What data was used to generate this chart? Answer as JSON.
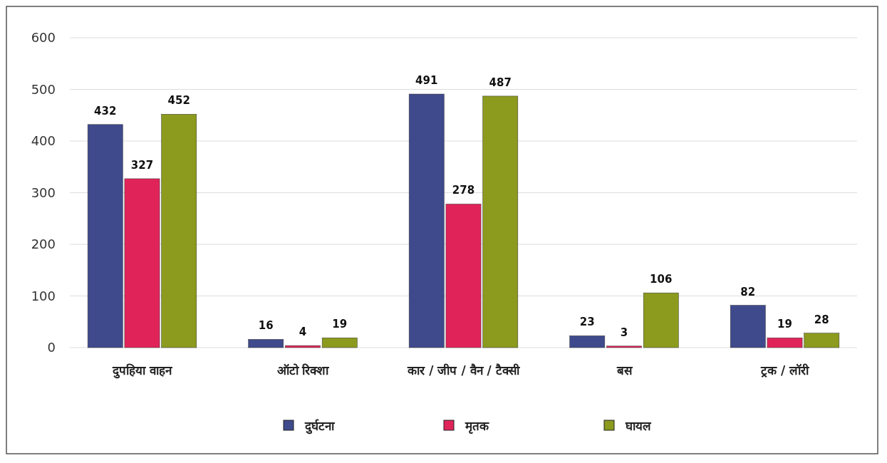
{
  "chart_data": {
    "type": "bar",
    "categories": [
      "दुपहिया वाहन",
      "ऑटो रिक्शा",
      "कार / जीप / वैन / टैक्सी",
      "बस",
      "ट्रक / लॉरी"
    ],
    "series": [
      {
        "name": "दुर्घटना",
        "color": "#3f4a8c",
        "values": [
          432,
          16,
          491,
          23,
          82
        ]
      },
      {
        "name": "मृतक",
        "color": "#e0245a",
        "values": [
          327,
          4,
          278,
          3,
          19
        ]
      },
      {
        "name": "घायल",
        "color": "#8c9a1e",
        "values": [
          452,
          19,
          487,
          106,
          28
        ]
      }
    ],
    "ylim": [
      0,
      600
    ],
    "yticks": [
      0,
      100,
      200,
      300,
      400,
      500,
      600
    ],
    "grid": "y",
    "legend": "bottom",
    "data_labels": true
  }
}
